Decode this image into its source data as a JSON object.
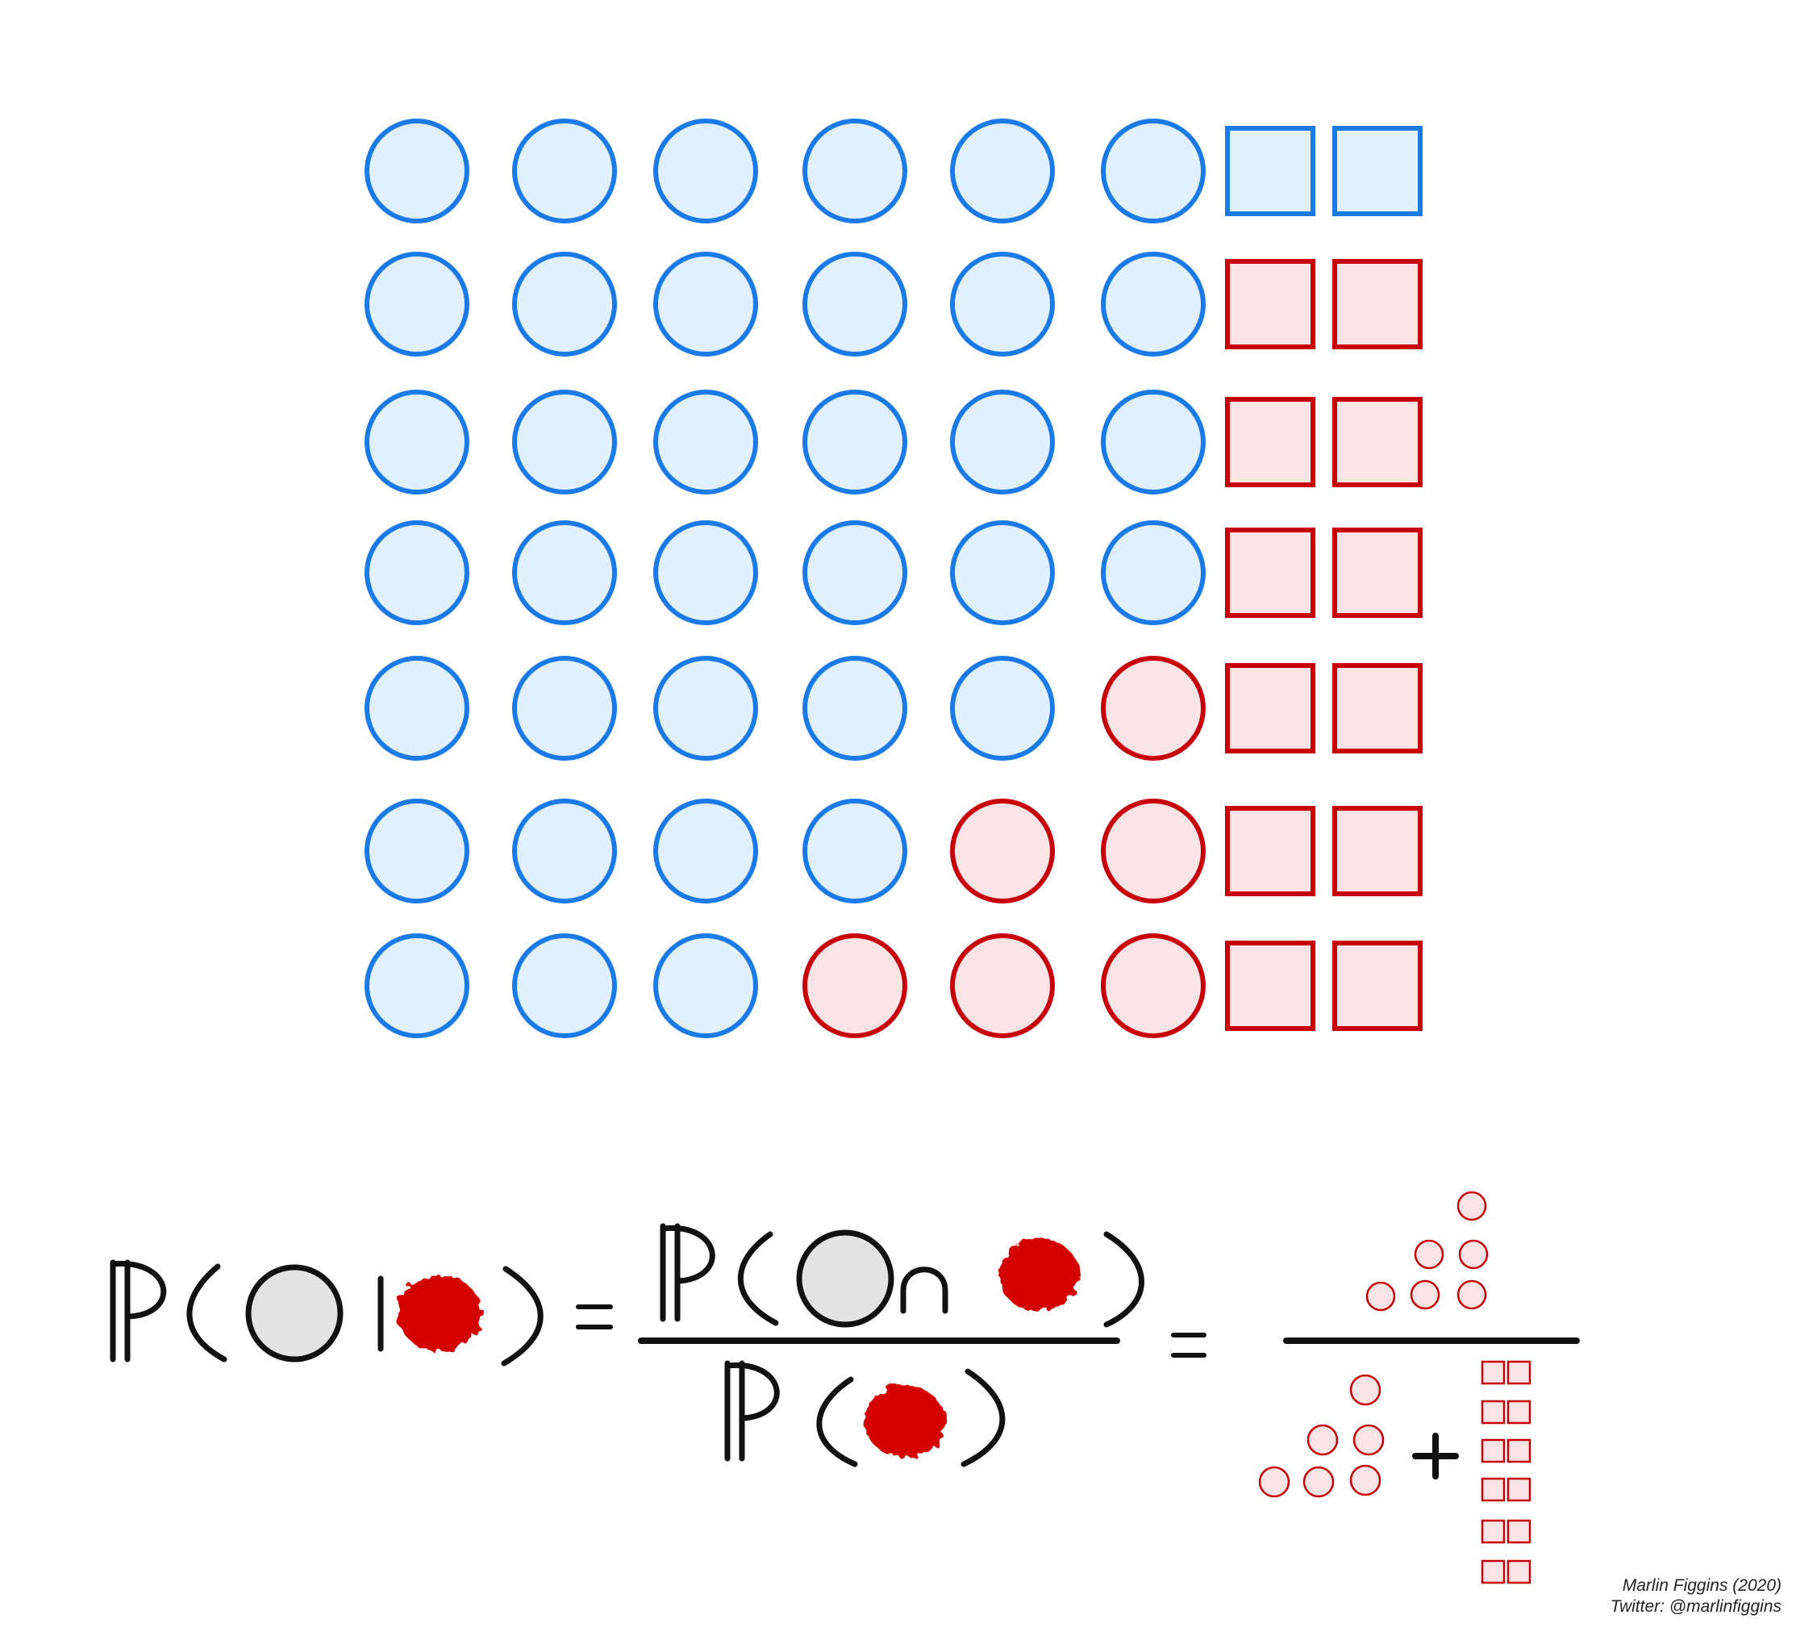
{
  "colors": {
    "blue_stroke": "#1a7be8",
    "blue_fill": "#e2f0fc",
    "red_stroke": "#c8000a",
    "red_fill": "#fbe4e4",
    "red_blob": "#d40000",
    "gray_fill": "#e3e3e3",
    "ink": "#111111"
  },
  "grid": {
    "rows": [
      {
        "circles": [
          "blue",
          "blue",
          "blue",
          "blue",
          "blue",
          "blue"
        ],
        "squares": [
          "blue",
          "blue"
        ]
      },
      {
        "circles": [
          "blue",
          "blue",
          "blue",
          "blue",
          "blue",
          "blue"
        ],
        "squares": [
          "red",
          "red"
        ]
      },
      {
        "circles": [
          "blue",
          "blue",
          "blue",
          "blue",
          "blue",
          "blue"
        ],
        "squares": [
          "red",
          "red"
        ]
      },
      {
        "circles": [
          "blue",
          "blue",
          "blue",
          "blue",
          "blue",
          "blue"
        ],
        "squares": [
          "red",
          "red"
        ]
      },
      {
        "circles": [
          "blue",
          "blue",
          "blue",
          "blue",
          "blue",
          "red"
        ],
        "squares": [
          "red",
          "red"
        ]
      },
      {
        "circles": [
          "blue",
          "blue",
          "blue",
          "blue",
          "red",
          "red"
        ],
        "squares": [
          "red",
          "red"
        ]
      },
      {
        "circles": [
          "blue",
          "blue",
          "blue",
          "red",
          "red",
          "red"
        ],
        "squares": [
          "red",
          "red"
        ]
      }
    ]
  },
  "formula": {
    "probability_symbol": "P",
    "given_bar": "|",
    "intersection": "∩",
    "equals": "=",
    "plus": "+",
    "result_numerator_red_circles": 6,
    "result_denominator_red_circles": 6,
    "result_denominator_red_squares": 12
  },
  "credit": {
    "author": "Marlin Figgins (2020)",
    "twitter": "Twitter: @marlinfiggins"
  }
}
